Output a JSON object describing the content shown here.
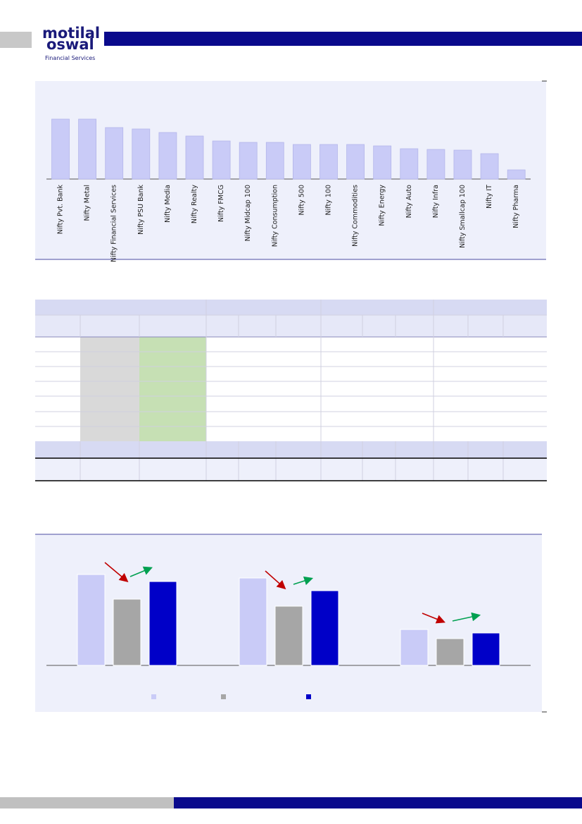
{
  "header": {
    "logo": [
      "motilal",
      "oswal"
    ],
    "tagline": "Financial Services"
  },
  "chart_data": [
    {
      "type": "bar",
      "categories": [
        "Nifty Pvt. Bank",
        "Nifty Metal",
        "Nifty Financial Services",
        "Nifty PSU Bank",
        "Nifty Media",
        "Nifty Realty",
        "Nifty FMCG",
        "Nifty Midcap 100",
        "Nifty Consumption",
        "Nifty 500",
        "Nifty 100",
        "Nifty Commodities",
        "Nifty Energy",
        "Nifty Auto",
        "Nifty Infra",
        "Nifty Smallcap 100",
        "Nifty IT",
        "Nifty Pharma"
      ],
      "values": [
        85,
        85,
        73,
        71,
        66,
        61,
        54,
        52,
        52,
        49,
        49,
        49,
        47,
        43,
        42,
        41,
        36,
        13
      ],
      "color": "#c9cbf7"
    },
    {
      "type": "grouped_bar",
      "categories": [
        null,
        null,
        null
      ],
      "series": [
        {
          "color": "#c9cbf7",
          "values": [
            129,
            124,
            51
          ]
        },
        {
          "color": "#a6a6a6",
          "values": [
            94,
            84,
            38
          ]
        },
        {
          "color": "#0000c8",
          "values": [
            119,
            106,
            46
          ]
        }
      ]
    }
  ]
}
